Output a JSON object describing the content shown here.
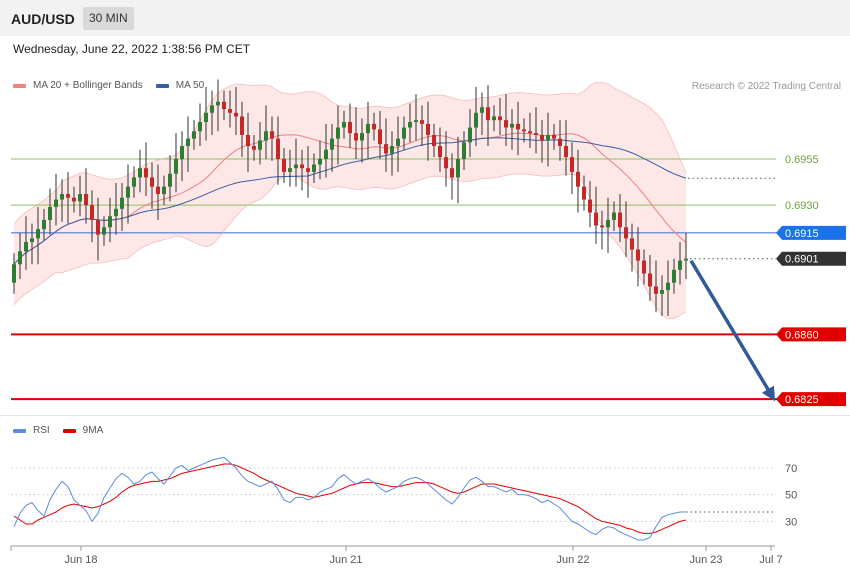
{
  "header": {
    "symbol": "AUD/USD",
    "timeframe": "30 MIN"
  },
  "datetime": "Wednesday, June 22, 2022 1:38:56 PM CET",
  "copyright": "Research © 2022 Trading Central",
  "colors": {
    "bollinger": "#f4a8a8",
    "bollinger_fill": "#fde3e3",
    "ma20": "#f08080",
    "ma50": "#3a5fa0",
    "candle_up": "#2e7d32",
    "candle_down": "#c62828",
    "resistance": "#8fbf60",
    "current_price": "#4a7be0",
    "support": "#e00000",
    "arrow": "#2f5c99",
    "rsi": "#5b8ce0",
    "rsi_ma": "#e00000"
  },
  "chart_data": [
    {
      "type": "candlestick",
      "legend": [
        {
          "name": "MA 20 + Bollinger Bands",
          "color": "#f08080"
        },
        {
          "name": "MA 50",
          "color": "#3a5fa0"
        }
      ],
      "x_ticks": [
        "Jun 18",
        "Jun 21",
        "Jun 22",
        "Jun 23",
        "Jul 7"
      ],
      "ylim": [
        0.6818,
        0.6988
      ],
      "levels": [
        {
          "label": "0.6955",
          "value": 0.6955,
          "kind": "resistance"
        },
        {
          "label": "0.6930",
          "value": 0.693,
          "kind": "resistance"
        },
        {
          "label": "0.6915",
          "value": 0.6915,
          "kind": "current"
        },
        {
          "label": "0.6901",
          "value": 0.6901,
          "kind": "last"
        },
        {
          "label": "0.6860",
          "value": 0.686,
          "kind": "support"
        },
        {
          "label": "0.6825",
          "value": 0.6825,
          "kind": "support"
        }
      ],
      "forecast_arrow": {
        "from": 0.6901,
        "to": 0.6825,
        "direction": "down"
      },
      "close": [
        0.6898,
        0.6905,
        0.691,
        0.6912,
        0.6917,
        0.6922,
        0.6929,
        0.6933,
        0.6936,
        0.6934,
        0.6932,
        0.6936,
        0.693,
        0.6922,
        0.6914,
        0.6918,
        0.6924,
        0.6928,
        0.6934,
        0.694,
        0.6945,
        0.695,
        0.6945,
        0.694,
        0.6936,
        0.694,
        0.6947,
        0.6955,
        0.6962,
        0.6966,
        0.697,
        0.6975,
        0.698,
        0.6984,
        0.6986,
        0.6982,
        0.698,
        0.6978,
        0.6968,
        0.6962,
        0.696,
        0.6965,
        0.697,
        0.6966,
        0.6955,
        0.6948,
        0.695,
        0.6952,
        0.695,
        0.6948,
        0.6952,
        0.6955,
        0.696,
        0.6966,
        0.6972,
        0.6975,
        0.6969,
        0.6965,
        0.6969,
        0.6974,
        0.6971,
        0.6963,
        0.6958,
        0.6962,
        0.6966,
        0.6972,
        0.6975,
        0.6976,
        0.6974,
        0.6968,
        0.6962,
        0.6956,
        0.695,
        0.6945,
        0.6955,
        0.6964,
        0.6972,
        0.698,
        0.6983,
        0.6976,
        0.6978,
        0.6976,
        0.6972,
        0.6974,
        0.6971,
        0.697,
        0.6969,
        0.6968,
        0.6965,
        0.6968,
        0.6966,
        0.6962,
        0.6956,
        0.6948,
        0.694,
        0.6933,
        0.6926,
        0.6919,
        0.6918,
        0.6922,
        0.6926,
        0.6918,
        0.6912,
        0.6906,
        0.69,
        0.6893,
        0.6886,
        0.6882,
        0.6884,
        0.6888,
        0.6895,
        0.69,
        0.6901
      ]
    },
    {
      "type": "line",
      "legend": [
        {
          "name": "RSI",
          "color": "#5b8ce0"
        },
        {
          "name": "9MA",
          "color": "#e00000"
        }
      ],
      "ylim": [
        10,
        82
      ],
      "y_ticks": [
        "70",
        "50",
        "30"
      ],
      "y_tick_values": [
        70,
        50,
        30
      ],
      "series": [
        {
          "name": "RSI",
          "values": [
            26,
            36,
            42,
            44,
            38,
            34,
            46,
            54,
            60,
            56,
            46,
            42,
            38,
            30,
            36,
            48,
            55,
            62,
            66,
            63,
            58,
            60,
            65,
            67,
            62,
            58,
            64,
            70,
            72,
            68,
            70,
            72,
            74,
            76,
            77,
            78,
            74,
            70,
            64,
            60,
            58,
            56,
            58,
            60,
            54,
            46,
            44,
            48,
            48,
            46,
            48,
            52,
            54,
            56,
            62,
            65,
            61,
            58,
            60,
            62,
            59,
            55,
            52,
            54,
            56,
            60,
            62,
            63,
            61,
            58,
            54,
            50,
            46,
            43,
            48,
            55,
            61,
            63,
            60,
            56,
            56,
            54,
            52,
            54,
            50,
            50,
            49,
            47,
            44,
            46,
            43,
            40,
            35,
            30,
            28,
            25,
            22,
            20,
            24,
            26,
            25,
            22,
            20,
            18,
            16,
            16,
            18,
            26,
            33,
            35,
            36,
            37,
            37
          ]
        },
        {
          "name": "9MA",
          "values": [
            34,
            31,
            28,
            28,
            31,
            33,
            35,
            37,
            40,
            42,
            43,
            42,
            41,
            40,
            41,
            43,
            45,
            48,
            52,
            55,
            57,
            58,
            59,
            60,
            60,
            61,
            62,
            64,
            66,
            67,
            68,
            69,
            70,
            71,
            72,
            73,
            73,
            72,
            70,
            68,
            66,
            63,
            61,
            59,
            57,
            55,
            53,
            51,
            50,
            49,
            48,
            49,
            50,
            51,
            53,
            55,
            57,
            58,
            59,
            59,
            59,
            58,
            57,
            56,
            56,
            57,
            58,
            59,
            59,
            59,
            58,
            56,
            54,
            52,
            51,
            52,
            54,
            56,
            58,
            58,
            58,
            57,
            56,
            55,
            54,
            53,
            52,
            51,
            50,
            49,
            48,
            47,
            45,
            43,
            41,
            38,
            35,
            32,
            30,
            29,
            28,
            27,
            25,
            24,
            22,
            21,
            21,
            22,
            24,
            26,
            28,
            30,
            31
          ]
        }
      ]
    }
  ]
}
